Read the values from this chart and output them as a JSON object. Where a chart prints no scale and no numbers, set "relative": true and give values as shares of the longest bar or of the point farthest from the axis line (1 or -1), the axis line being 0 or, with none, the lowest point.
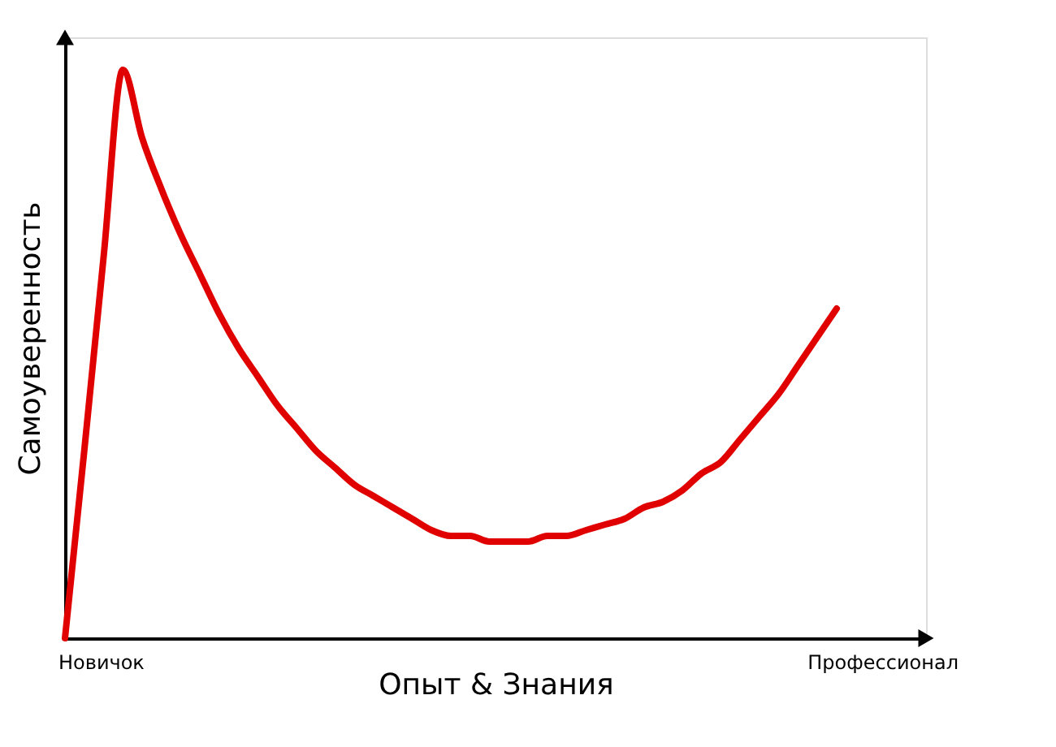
{
  "chart_data": {
    "type": "line",
    "relative": true,
    "xlabel": "Опыт & Знания",
    "ylabel": "Самоуверенность",
    "categories": [
      null,
      null,
      null,
      null,
      null,
      null,
      null,
      null,
      null,
      null,
      null,
      null,
      null,
      null,
      null,
      null,
      null,
      null,
      null,
      null,
      null,
      null,
      null,
      null,
      null,
      null,
      null,
      null,
      null,
      null,
      null,
      null,
      null,
      null,
      null,
      null,
      null,
      null,
      null,
      null,
      null
    ],
    "series": [
      {
        "color": "#e00000",
        "values": [
          0,
          0.33,
          0.67,
          1,
          0.88,
          0.79,
          0.71,
          0.64,
          0.57,
          0.51,
          0.46,
          0.41,
          0.37,
          0.33,
          0.3,
          0.27,
          0.25,
          0.23,
          0.21,
          0.19,
          0.18,
          0.18,
          0.17,
          0.17,
          0.17,
          0.18,
          0.18,
          0.19,
          0.2,
          0.21,
          0.23,
          0.24,
          0.26,
          0.29,
          0.31,
          0.35,
          0.39,
          0.43,
          0.48,
          0.53,
          0.58
        ]
      }
    ],
    "annotations": [
      "Новичок",
      "Профессионал"
    ],
    "grid": false,
    "marker": "none",
    "line_style": "solid"
  }
}
